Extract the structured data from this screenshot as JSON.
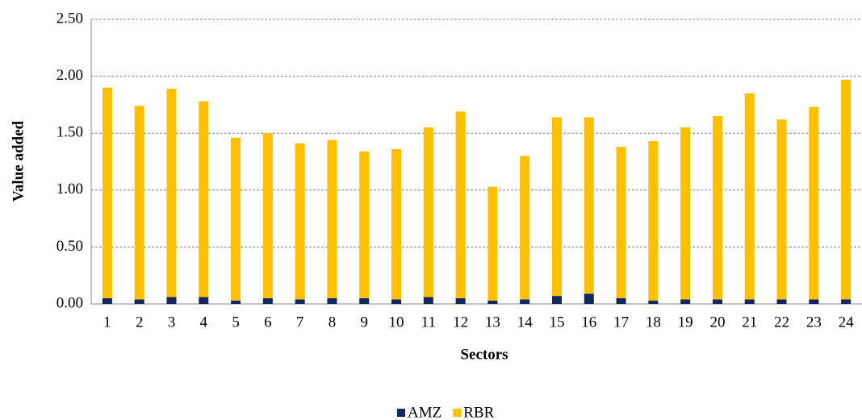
{
  "chart_data": {
    "type": "stacked_bar",
    "x_label": "Sectors",
    "y_label": "Value added",
    "categories": [
      "1",
      "2",
      "3",
      "4",
      "5",
      "6",
      "7",
      "8",
      "9",
      "10",
      "11",
      "12",
      "13",
      "14",
      "15",
      "16",
      "17",
      "18",
      "19",
      "20",
      "21",
      "22",
      "23",
      "24"
    ],
    "series": [
      {
        "name": "AMZ",
        "color": "#12275e",
        "values": [
          0.05,
          0.04,
          0.06,
          0.06,
          0.03,
          0.05,
          0.04,
          0.05,
          0.05,
          0.04,
          0.06,
          0.05,
          0.03,
          0.04,
          0.07,
          0.09,
          0.05,
          0.03,
          0.04,
          0.04,
          0.04,
          0.04,
          0.04,
          0.04
        ]
      },
      {
        "name": "RBR",
        "color": "#ffc000",
        "values": [
          1.85,
          1.7,
          1.83,
          1.72,
          1.43,
          1.45,
          1.37,
          1.39,
          1.29,
          1.32,
          1.49,
          1.64,
          1.0,
          1.26,
          1.57,
          1.55,
          1.33,
          1.4,
          1.51,
          1.61,
          1.81,
          1.58,
          1.69,
          1.93
        ]
      }
    ],
    "ylim": [
      0,
      2.5
    ],
    "yticks": [
      {
        "value": 0,
        "label": "0.00"
      },
      {
        "value": 0.5,
        "label": "0.50"
      },
      {
        "value": 1,
        "label": "1.00"
      },
      {
        "value": 1.5,
        "label": "1.50"
      },
      {
        "value": 2,
        "label": "2.00"
      },
      {
        "value": 2.5,
        "label": "2.50"
      }
    ],
    "grid": true,
    "legend": "bottom"
  }
}
